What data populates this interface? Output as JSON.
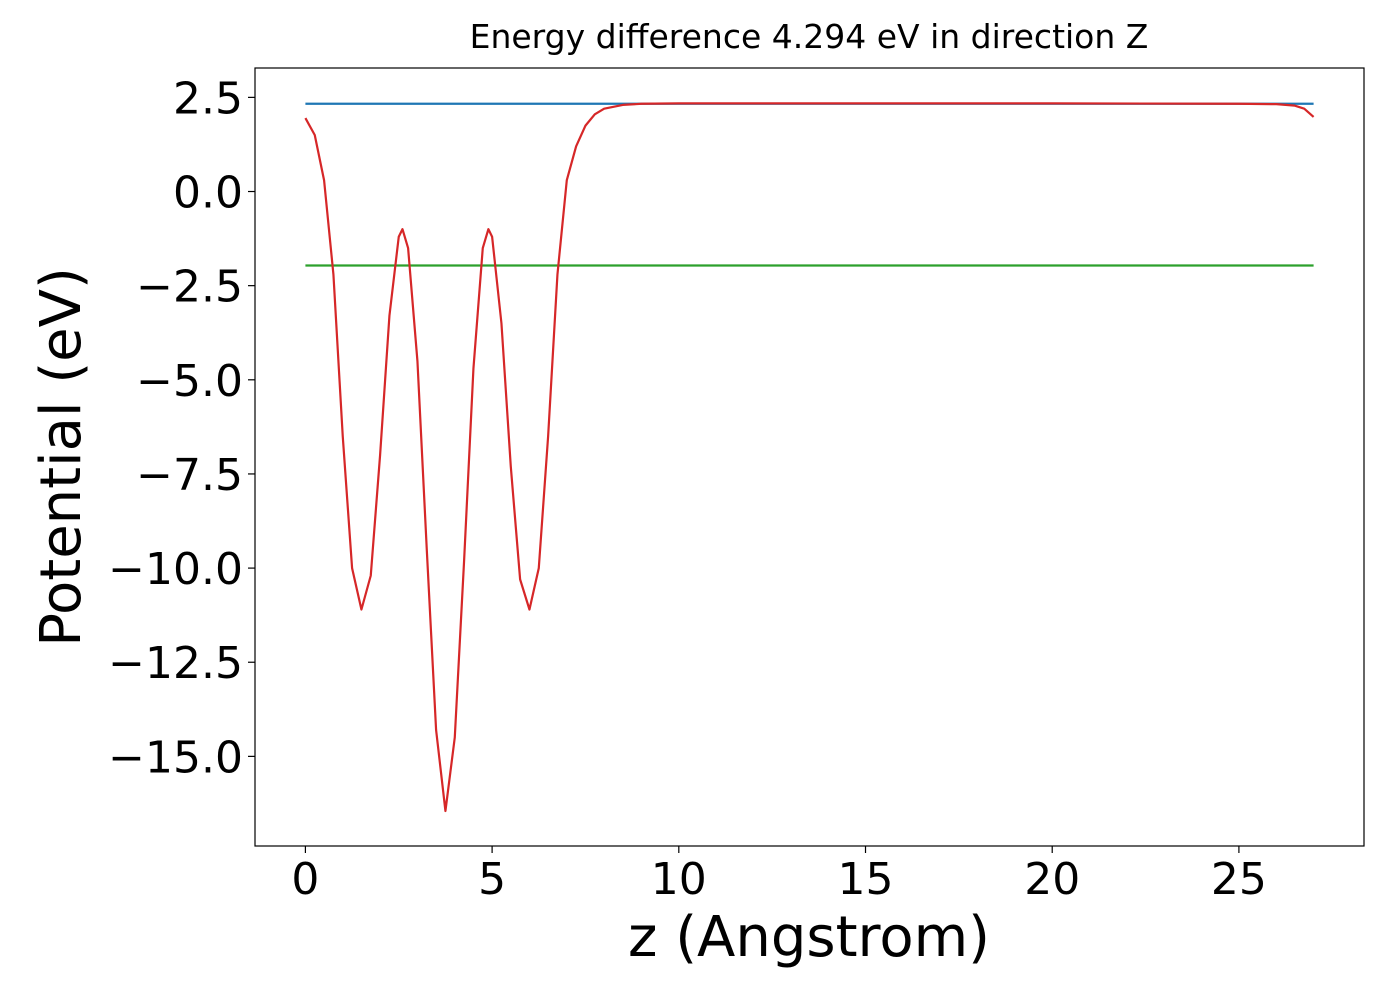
{
  "chart_data": {
    "type": "line",
    "title": "Energy difference 4.294 eV in direction Z",
    "x_label": "z (Angstrom)",
    "y_label": "Potential (eV)",
    "xlim": [
      -1.35,
      28.35
    ],
    "ylim": [
      -17.38,
      3.28
    ],
    "xticks": [
      0,
      5,
      10,
      15,
      20,
      25
    ],
    "yticks": [
      {
        "value": 2.5,
        "label": "2.5"
      },
      {
        "value": 0,
        "label": "0.0"
      },
      {
        "value": -2.5,
        "label": "−2.5"
      },
      {
        "value": -5,
        "label": "−5.0"
      },
      {
        "value": -7.5,
        "label": "−7.5"
      },
      {
        "value": -10,
        "label": "−10.0"
      },
      {
        "value": -12.5,
        "label": "−12.5"
      },
      {
        "value": -15,
        "label": "−15.0"
      }
    ],
    "grid": false,
    "series": [
      {
        "color": "#1f77b4",
        "x": [
          0,
          27
        ],
        "values": [
          2.33,
          2.33
        ]
      },
      {
        "color": "#2ca02c",
        "x": [
          0,
          27
        ],
        "values": [
          -1.964,
          -1.964
        ]
      },
      {
        "color": "#d62728",
        "x": [
          0,
          0.25,
          0.5,
          0.75,
          1.0,
          1.25,
          1.5,
          1.75,
          2.0,
          2.25,
          2.5,
          2.6,
          2.75,
          3.0,
          3.25,
          3.5,
          3.75,
          4.0,
          4.25,
          4.5,
          4.75,
          4.9,
          5.0,
          5.25,
          5.5,
          5.75,
          6.0,
          6.25,
          6.5,
          6.75,
          7.0,
          7.25,
          7.5,
          7.75,
          8.0,
          8.5,
          9.0,
          10,
          15,
          20,
          25,
          26,
          26.5,
          26.75,
          27
        ],
        "values": [
          1.95,
          1.5,
          0.3,
          -2.2,
          -6.5,
          -10.0,
          -11.1,
          -10.2,
          -7.0,
          -3.3,
          -1.2,
          -1.0,
          -1.5,
          -4.5,
          -9.5,
          -14.3,
          -16.45,
          -14.5,
          -9.8,
          -4.7,
          -1.5,
          -1.0,
          -1.2,
          -3.5,
          -7.3,
          -10.3,
          -11.1,
          -10.0,
          -6.5,
          -2.2,
          0.3,
          1.2,
          1.75,
          2.05,
          2.2,
          2.3,
          2.33,
          2.34,
          2.34,
          2.34,
          2.33,
          2.32,
          2.28,
          2.2,
          1.98
        ]
      }
    ]
  }
}
